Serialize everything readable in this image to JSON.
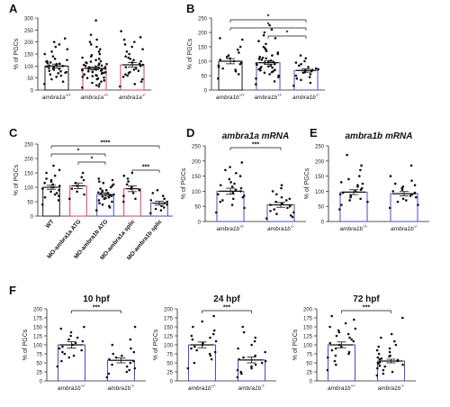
{
  "figure": {
    "panels": [
      {
        "id": "A",
        "letter": "A",
        "title": "",
        "ylabel": "% of PGCs",
        "yticks": [
          0,
          50,
          100,
          150,
          200,
          250,
          300
        ],
        "groups": [
          {
            "label": "ambra1a",
            "sup": "+/+",
            "color": "#1a1a1a"
          },
          {
            "label": "ambra1a",
            "sup": "+/-",
            "color": "#e03c6e"
          },
          {
            "label": "ambra1a",
            "sup": "-/-",
            "color": "#e03c6e"
          }
        ],
        "sig": []
      },
      {
        "id": "B",
        "letter": "B",
        "title": "",
        "ylabel": "% of PGCs",
        "yticks": [
          0,
          50,
          100,
          150,
          200,
          250
        ],
        "groups": [
          {
            "label": "ambra1b",
            "sup": "+/+",
            "color": "#1a1a1a"
          },
          {
            "label": "ambra1b",
            "sup": "+/-",
            "color": "#4a4ac8"
          },
          {
            "label": "ambra1b",
            "sup": "-/-",
            "color": "#4a4ac8"
          }
        ],
        "sig": [
          {
            "from": 0,
            "to": 2,
            "label": "*"
          },
          {
            "from": 0,
            "to": 2,
            "label": "*"
          },
          {
            "from": 1,
            "to": 2,
            "label": "*"
          }
        ]
      },
      {
        "id": "C",
        "letter": "C",
        "title": "",
        "ylabel": "% of PGCs",
        "yticks": [
          0,
          50,
          100,
          150,
          200,
          250
        ],
        "groups": [
          {
            "label": "WT",
            "sup": "",
            "color": "#1a1a1a"
          },
          {
            "label": "MO-ambra1a ATG",
            "sup": "",
            "color": "#e03c6e"
          },
          {
            "label": "MO-ambra1b ATG",
            "sup": "",
            "color": "#4a4ac8"
          },
          {
            "label": "MO-ambra1a splic",
            "sup": "",
            "color": "#e03c6e"
          },
          {
            "label": "MO-ambra1b splic",
            "sup": "",
            "color": "#4a4ac8"
          }
        ],
        "sig": [
          {
            "from": 0,
            "to": 4,
            "label": "****"
          },
          {
            "from": 0,
            "to": 2,
            "label": "*"
          },
          {
            "from": 1,
            "to": 2,
            "label": "*"
          },
          {
            "from": 3,
            "to": 4,
            "label": "***"
          }
        ]
      },
      {
        "id": "D",
        "letter": "D",
        "title": "ambra1a mRNA",
        "ylabel": "% of PGCs",
        "yticks": [
          0,
          50,
          100,
          150,
          200,
          250
        ],
        "groups": [
          {
            "label": "ambra1b",
            "sup": "+/-",
            "color": "#4a4ac8"
          },
          {
            "label": "ambra1b",
            "sup": "-/-",
            "color": "#4a4ac8"
          }
        ],
        "sig": [
          {
            "from": 0,
            "to": 1,
            "label": "***"
          }
        ]
      },
      {
        "id": "E",
        "letter": "E",
        "title": "ambra1b mRNA",
        "ylabel": "% of PGCs",
        "yticks": [
          0,
          50,
          100,
          150,
          200,
          250
        ],
        "groups": [
          {
            "label": "ambra1b",
            "sup": "+/-",
            "color": "#4a4ac8"
          },
          {
            "label": "ambra1b",
            "sup": "-/-",
            "color": "#4a4ac8"
          }
        ],
        "sig": []
      },
      {
        "id": "F1",
        "letter": "F",
        "title": "10 hpf",
        "ylabel": "% of PGCs",
        "yticks": [
          0,
          25,
          50,
          75,
          100,
          125,
          150,
          175,
          200
        ],
        "groups": [
          {
            "label": "ambra1b",
            "sup": "+/-",
            "color": "#4a4ac8"
          },
          {
            "label": "ambra1b",
            "sup": "-/-",
            "color": "#4a4ac8"
          }
        ],
        "sig": [
          {
            "from": 0,
            "to": 1,
            "label": "***"
          }
        ]
      },
      {
        "id": "F2",
        "letter": "",
        "title": "24 hpf",
        "ylabel": "% of PGCs",
        "yticks": [
          0,
          25,
          50,
          75,
          100,
          125,
          150,
          175,
          200
        ],
        "groups": [
          {
            "label": "ambra1b",
            "sup": "+/-",
            "color": "#4a4ac8"
          },
          {
            "label": "ambra1b",
            "sup": "-/-",
            "color": "#4a4ac8"
          }
        ],
        "sig": [
          {
            "from": 0,
            "to": 1,
            "label": "***"
          }
        ]
      },
      {
        "id": "F3",
        "letter": "",
        "title": "72 hpf",
        "ylabel": "% of PGCs",
        "yticks": [
          0,
          25,
          50,
          75,
          100,
          125,
          150,
          175,
          200
        ],
        "groups": [
          {
            "label": "ambra1b",
            "sup": "+/-",
            "color": "#4a4ac8"
          },
          {
            "label": "ambra1b",
            "sup": "-/-",
            "color": "#4a4ac8"
          }
        ],
        "sig": [
          {
            "from": 0,
            "to": 1,
            "label": "***"
          }
        ]
      }
    ]
  },
  "chart_data": [
    {
      "panel": "A",
      "type": "bar",
      "ylabel": "% of PGCs",
      "ylim": [
        0,
        300
      ],
      "series": [
        {
          "name": "ambra1a+/+",
          "mean": 100,
          "sem": 8,
          "values": [
            25,
            35,
            45,
            55,
            60,
            65,
            70,
            72,
            75,
            78,
            80,
            85,
            88,
            90,
            92,
            95,
            98,
            100,
            102,
            105,
            108,
            110,
            112,
            115,
            118,
            120,
            125,
            130,
            140,
            150,
            160,
            170,
            180,
            190,
            200,
            215
          ]
        },
        {
          "name": "ambra1a+/-",
          "mean": 90,
          "sem": 6,
          "values": [
            10,
            15,
            20,
            25,
            30,
            35,
            40,
            45,
            48,
            50,
            52,
            55,
            58,
            60,
            62,
            65,
            68,
            70,
            72,
            74,
            75,
            76,
            78,
            80,
            82,
            84,
            85,
            86,
            88,
            90,
            92,
            94,
            95,
            96,
            98,
            100,
            102,
            104,
            105,
            108,
            110,
            112,
            115,
            118,
            120,
            125,
            130,
            135,
            140,
            145,
            150,
            160,
            170,
            180,
            190,
            200,
            210,
            230,
            290
          ]
        },
        {
          "name": "ambra1a-/-",
          "mean": 105,
          "sem": 9,
          "values": [
            15,
            25,
            35,
            45,
            55,
            60,
            65,
            70,
            75,
            80,
            85,
            90,
            95,
            100,
            105,
            110,
            115,
            120,
            125,
            130,
            135,
            140,
            150,
            160,
            170,
            180,
            190,
            200,
            210,
            220,
            245
          ]
        }
      ]
    },
    {
      "panel": "B",
      "type": "bar",
      "ylabel": "% of PGCs",
      "ylim": [
        0,
        250
      ],
      "series": [
        {
          "name": "ambra1b+/+",
          "mean": 100,
          "sem": 9,
          "values": [
            40,
            55,
            65,
            70,
            75,
            80,
            85,
            90,
            95,
            100,
            105,
            110,
            115,
            120,
            130,
            140,
            150,
            175,
            180
          ]
        },
        {
          "name": "ambra1b+/-",
          "mean": 95,
          "sem": 6,
          "values": [
            20,
            30,
            40,
            45,
            50,
            55,
            60,
            62,
            65,
            68,
            70,
            72,
            75,
            78,
            80,
            82,
            85,
            88,
            90,
            92,
            95,
            98,
            100,
            102,
            105,
            108,
            110,
            112,
            115,
            120,
            125,
            130,
            135,
            140,
            145,
            150,
            160,
            170,
            180,
            190,
            200,
            210,
            225
          ]
        },
        {
          "name": "ambra1b-/-",
          "mean": 68,
          "sem": 6,
          "values": [
            15,
            25,
            35,
            40,
            45,
            50,
            55,
            60,
            62,
            65,
            68,
            70,
            72,
            75,
            80,
            85,
            90,
            95,
            100,
            110,
            120
          ]
        }
      ]
    },
    {
      "panel": "C",
      "type": "bar",
      "ylabel": "% of PGCs",
      "ylim": [
        0,
        250
      ],
      "series": [
        {
          "name": "WT",
          "mean": 100,
          "sem": 7,
          "values": [
            40,
            55,
            65,
            70,
            75,
            80,
            85,
            90,
            95,
            100,
            105,
            110,
            115,
            120,
            125,
            130,
            140,
            150,
            160,
            175
          ]
        },
        {
          "name": "MO-ambra1a ATG",
          "mean": 105,
          "sem": 10,
          "values": [
            60,
            75,
            85,
            95,
            105,
            115,
            125,
            135,
            150
          ]
        },
        {
          "name": "MO-ambra1b ATG",
          "mean": 75,
          "sem": 6,
          "values": [
            20,
            30,
            35,
            40,
            45,
            50,
            55,
            60,
            62,
            65,
            68,
            70,
            72,
            75,
            78,
            80,
            82,
            85,
            88,
            90,
            95,
            100,
            105,
            110,
            115,
            120,
            125,
            130
          ]
        },
        {
          "name": "MO-ambra1a splic",
          "mean": 95,
          "sem": 10,
          "values": [
            50,
            60,
            70,
            80,
            90,
            95,
            100,
            110,
            120,
            130,
            140,
            150
          ]
        },
        {
          "name": "MO-ambra1b splic",
          "mean": 45,
          "sem": 7,
          "values": [
            10,
            20,
            25,
            30,
            35,
            40,
            45,
            50,
            55,
            60,
            70,
            80,
            90
          ]
        }
      ]
    },
    {
      "panel": "D",
      "title": "ambra1a mRNA",
      "type": "bar",
      "ylabel": "% of PGCs",
      "ylim": [
        0,
        250
      ],
      "series": [
        {
          "name": "ambra1b+/-",
          "mean": 100,
          "sem": 10,
          "values": [
            30,
            45,
            55,
            65,
            70,
            75,
            80,
            85,
            90,
            95,
            100,
            105,
            110,
            115,
            120,
            125,
            130,
            140,
            150,
            160,
            170,
            180,
            195
          ]
        },
        {
          "name": "ambra1b-/-",
          "mean": 55,
          "sem": 8,
          "values": [
            10,
            15,
            20,
            25,
            30,
            35,
            40,
            45,
            50,
            55,
            60,
            65,
            70,
            75,
            80,
            90,
            100,
            110,
            120
          ]
        }
      ]
    },
    {
      "panel": "E",
      "title": "ambra1b mRNA",
      "type": "bar",
      "ylabel": "% of PGCs",
      "ylim": [
        0,
        250
      ],
      "series": [
        {
          "name": "ambra1b+/-",
          "mean": 97,
          "sem": 8,
          "values": [
            40,
            55,
            65,
            70,
            75,
            80,
            85,
            90,
            95,
            100,
            105,
            110,
            115,
            120,
            125,
            130,
            140,
            150,
            170,
            185,
            220
          ]
        },
        {
          "name": "ambra1b-/-",
          "mean": 92,
          "sem": 7,
          "values": [
            45,
            55,
            65,
            70,
            75,
            80,
            85,
            90,
            95,
            100,
            105,
            110,
            115,
            120,
            125,
            135,
            150,
            185
          ]
        }
      ]
    },
    {
      "panel": "F",
      "title": "10 hpf",
      "type": "bar",
      "ylabel": "% of PGCs",
      "ylim": [
        0,
        200
      ],
      "series": [
        {
          "name": "ambra1b+/-",
          "mean": 100,
          "sem": 9,
          "values": [
            40,
            55,
            65,
            70,
            75,
            80,
            85,
            90,
            95,
            100,
            105,
            110,
            115,
            120,
            125,
            135,
            145,
            150
          ]
        },
        {
          "name": "ambra1b-/-",
          "mean": 57,
          "sem": 7,
          "values": [
            10,
            20,
            25,
            30,
            35,
            40,
            45,
            50,
            55,
            60,
            65,
            70,
            75,
            80,
            90,
            100,
            115,
            150
          ]
        }
      ]
    },
    {
      "panel": "F",
      "title": "24 hpf",
      "type": "bar",
      "ylabel": "% of PGCs",
      "ylim": [
        0,
        200
      ],
      "series": [
        {
          "name": "ambra1b+/-",
          "mean": 100,
          "sem": 8,
          "values": [
            35,
            50,
            60,
            70,
            75,
            80,
            85,
            90,
            95,
            100,
            105,
            110,
            115,
            120,
            125,
            130,
            140,
            150,
            165,
            180
          ]
        },
        {
          "name": "ambra1b-/-",
          "mean": 58,
          "sem": 8,
          "values": [
            10,
            20,
            25,
            30,
            35,
            40,
            45,
            50,
            55,
            60,
            65,
            70,
            80,
            90,
            100,
            110,
            120,
            135,
            150
          ]
        }
      ]
    },
    {
      "panel": "F",
      "title": "72 hpf",
      "type": "bar",
      "ylabel": "% of PGCs",
      "ylim": [
        0,
        200
      ],
      "series": [
        {
          "name": "ambra1b+/-",
          "mean": 100,
          "sem": 8,
          "values": [
            30,
            45,
            55,
            65,
            70,
            75,
            80,
            85,
            90,
            95,
            100,
            105,
            110,
            115,
            120,
            125,
            130,
            135,
            140,
            145,
            150,
            160,
            170,
            180
          ]
        },
        {
          "name": "ambra1b-/-",
          "mean": 55,
          "sem": 5,
          "values": [
            15,
            20,
            25,
            30,
            35,
            40,
            42,
            45,
            48,
            50,
            52,
            55,
            58,
            60,
            62,
            65,
            68,
            70,
            75,
            80,
            85,
            90,
            95,
            100,
            110,
            120,
            130,
            175
          ]
        }
      ]
    }
  ]
}
